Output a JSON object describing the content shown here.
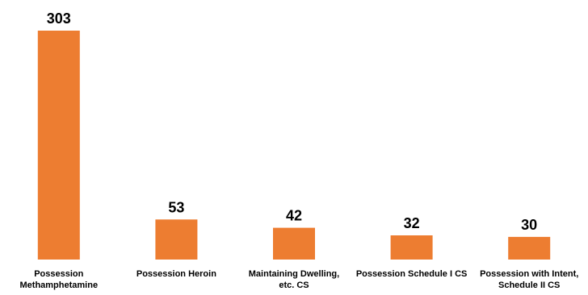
{
  "chart_data": {
    "type": "bar",
    "categories": [
      [
        "Possession",
        "Methamphetamine"
      ],
      [
        "Possession Heroin"
      ],
      [
        "Maintaining Dwelling,",
        "etc. CS"
      ],
      [
        "Possession Schedule I CS"
      ],
      [
        "Possession with Intent,",
        "Schedule II CS"
      ]
    ],
    "values": [
      303,
      53,
      42,
      32,
      30
    ],
    "data_labels": [
      "303",
      "53",
      "42",
      "32",
      "30"
    ],
    "bar_color": "#ED7D31",
    "ylim": [
      0,
      303
    ],
    "grid": false,
    "legend": "none",
    "title": "",
    "xlabel": "",
    "ylabel": ""
  }
}
